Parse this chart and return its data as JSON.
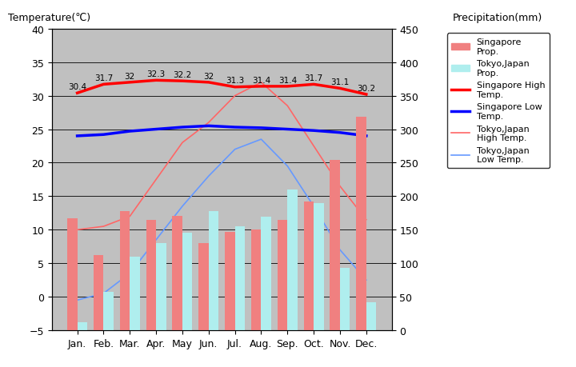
{
  "months": [
    "Jan.",
    "Feb.",
    "Mar.",
    "Apr.",
    "May",
    "Jun.",
    "Jul.",
    "Aug.",
    "Sep.",
    "Oct.",
    "Nov.",
    "Dec."
  ],
  "singapore_precip": [
    167,
    112,
    178,
    165,
    171,
    130,
    147,
    150,
    165,
    192,
    254,
    318
  ],
  "tokyo_precip": [
    12,
    57,
    110,
    130,
    145,
    178,
    155,
    170,
    210,
    190,
    93,
    42
  ],
  "singapore_high": [
    30.4,
    31.7,
    32.0,
    32.3,
    32.2,
    32.0,
    31.3,
    31.4,
    31.4,
    31.7,
    31.1,
    30.2
  ],
  "singapore_low": [
    24.0,
    24.2,
    24.7,
    25.0,
    25.3,
    25.5,
    25.3,
    25.2,
    25.0,
    24.8,
    24.5,
    24.0
  ],
  "tokyo_high": [
    10.0,
    10.5,
    12.0,
    17.5,
    23.0,
    26.0,
    30.0,
    32.0,
    28.5,
    22.5,
    16.5,
    11.5
  ],
  "tokyo_low": [
    -0.5,
    0.5,
    3.5,
    8.5,
    13.5,
    18.0,
    22.0,
    23.5,
    19.5,
    13.5,
    7.0,
    2.5
  ],
  "singapore_high_labels": [
    "30.4",
    "31.7",
    "32",
    "32.3",
    "32.2",
    "32",
    "31.3",
    "31.4",
    "31.4",
    "31.7",
    "31.1",
    "30.2"
  ],
  "singapore_precip_color": "#F08080",
  "tokyo_precip_color": "#AFEEEE",
  "singapore_high_color": "#FF0000",
  "singapore_low_color": "#0000FF",
  "tokyo_high_color": "#FF6666",
  "tokyo_low_color": "#6699FF",
  "background_color": "#C0C0C0",
  "temp_ylim": [
    -5,
    40
  ],
  "temp_yticks": [
    -5,
    0,
    5,
    10,
    15,
    20,
    25,
    30,
    35,
    40
  ],
  "precip_ylim": [
    0,
    450
  ],
  "precip_yticks": [
    0,
    50,
    100,
    150,
    200,
    250,
    300,
    350,
    400,
    450
  ],
  "title_left": "Temperature(℃)",
  "title_right": "Precipitation(mm)"
}
